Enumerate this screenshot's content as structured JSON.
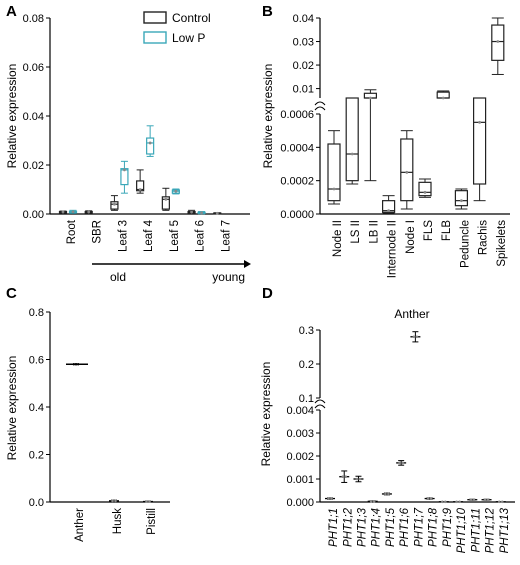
{
  "figure": {
    "panels": [
      "A",
      "B",
      "C",
      "D"
    ]
  },
  "colors": {
    "control": "#222222",
    "low_p": "#3aa7b8",
    "axis": "#000000",
    "point": "#888888"
  },
  "chart_data": [
    {
      "panel": "A",
      "type": "box",
      "ylabel": "Relative expression",
      "ylim": [
        0,
        0.08
      ],
      "yticks": [
        "0.00",
        "0.02",
        "0.04",
        "0.06",
        "0.08"
      ],
      "categories": [
        "Root",
        "SBR",
        "Leaf 3",
        "Leaf 4",
        "Leaf 5",
        "Leaf 6",
        "Leaf 7"
      ],
      "gradient_axis": {
        "start": "old",
        "end": "young"
      },
      "legend": {
        "position": "top-right",
        "entries": [
          "Control",
          "Low P"
        ]
      },
      "series": [
        {
          "name": "Control",
          "values": [
            {
              "min": 0.0003,
              "q1": 0.0005,
              "median": 0.0008,
              "q3": 0.001,
              "max": 0.0012
            },
            {
              "min": 0.0003,
              "q1": 0.0005,
              "median": 0.0008,
              "q3": 0.001,
              "max": 0.0013
            },
            {
              "min": 0.0015,
              "q1": 0.002,
              "median": 0.004,
              "q3": 0.005,
              "max": 0.0075
            },
            {
              "min": 0.0085,
              "q1": 0.0095,
              "median": 0.01,
              "q3": 0.0135,
              "max": 0.018
            },
            {
              "min": 0.0015,
              "q1": 0.002,
              "median": 0.006,
              "q3": 0.007,
              "max": 0.0105
            },
            {
              "min": 0.0002,
              "q1": 0.0005,
              "median": 0.0008,
              "q3": 0.001,
              "max": 0.0015
            },
            {
              "min": 0.0001,
              "q1": 0.0002,
              "median": 0.0003,
              "q3": 0.0004,
              "max": 0.0005
            }
          ]
        },
        {
          "name": "Low P",
          "values": [
            {
              "min": 0.0003,
              "q1": 0.0006,
              "median": 0.0009,
              "q3": 0.0011,
              "max": 0.0015
            },
            null,
            {
              "min": 0.0085,
              "q1": 0.012,
              "median": 0.018,
              "q3": 0.0185,
              "max": 0.0215
            },
            {
              "min": 0.0235,
              "q1": 0.0245,
              "median": 0.029,
              "q3": 0.031,
              "max": 0.036
            },
            {
              "min": 0.0082,
              "q1": 0.0085,
              "median": 0.0093,
              "q3": 0.0098,
              "max": 0.0102
            },
            {
              "min": 0.0001,
              "q1": 0.0003,
              "median": 0.0005,
              "q3": 0.0007,
              "max": 0.001
            },
            null
          ]
        }
      ]
    },
    {
      "panel": "B",
      "type": "box",
      "ylabel": "Relative expression",
      "axis_break": {
        "lower_range": [
          0,
          0.0006
        ],
        "upper_range": [
          0.0006,
          0.04
        ]
      },
      "yticks_lower": [
        "0.0000",
        "0.0002",
        "0.0004",
        "0.0006"
      ],
      "yticks_upper": [
        "0.01",
        "0.02",
        "0.03",
        "0.04"
      ],
      "upper_tick_values": [
        0.01,
        0.02,
        0.03,
        0.04
      ],
      "categories": [
        "Node II",
        "LS II",
        "LB II",
        "Internode II",
        "Node I",
        "FLS",
        "FLB",
        "Peduncle",
        "Rachis",
        "Spikelets"
      ],
      "boxes": [
        {
          "min": 6e-05,
          "q1": 8e-05,
          "median": 0.00015,
          "q3": 0.00042,
          "max": 0.0005
        },
        {
          "min": 0.00018,
          "q1": 0.0002,
          "median": 0.00036,
          "q3": 0.00062,
          "max": 0.00062
        },
        {
          "min": 0.0002,
          "q1": 0.0007,
          "median": 0.006,
          "q3": 0.008,
          "max": 0.0095
        },
        {
          "min": 5e-06,
          "q1": 1e-05,
          "median": 2e-05,
          "q3": 8e-05,
          "max": 0.00011
        },
        {
          "min": 3e-05,
          "q1": 8e-05,
          "median": 0.00025,
          "q3": 0.00045,
          "max": 0.0005
        },
        {
          "min": 0.0001,
          "q1": 0.00011,
          "median": 0.00013,
          "q3": 0.00019,
          "max": 0.00021
        },
        {
          "min": 0.0017,
          "q1": 0.003,
          "median": 0.006,
          "q3": 0.0085,
          "max": 0.009
        },
        {
          "min": 3e-05,
          "q1": 5e-05,
          "median": 8e-05,
          "q3": 0.00014,
          "max": 0.00015
        },
        {
          "min": 8e-05,
          "q1": 0.00018,
          "median": 0.00055,
          "q3": 0.00062,
          "max": 0.00062
        },
        {
          "min": 0.016,
          "q1": 0.022,
          "median": 0.03,
          "q3": 0.037,
          "max": 0.04
        }
      ]
    },
    {
      "panel": "C",
      "type": "scatter-errorbar",
      "ylabel": "Relative expression",
      "ylim": [
        0,
        0.8
      ],
      "yticks": [
        "0.0",
        "0.2",
        "0.4",
        "0.6",
        "0.8"
      ],
      "categories": [
        "Anther",
        "Husk",
        "Pistill"
      ],
      "values": [
        0.58,
        0.005,
        0.002
      ],
      "errors": [
        0.003,
        0.003,
        0.002
      ]
    },
    {
      "panel": "D",
      "type": "scatter-errorbar",
      "title": "Anther",
      "ylabel": "Relative expression",
      "axis_break": {
        "lower_range": [
          0,
          0.004
        ],
        "upper_range": [
          0.004,
          0.3
        ]
      },
      "yticks_lower": [
        "0.000",
        "0.001",
        "0.002",
        "0.003",
        "0.004"
      ],
      "yticks_upper": [
        "0.1",
        "0.2",
        "0.3"
      ],
      "upper_tick_values": [
        0.1,
        0.2,
        0.3
      ],
      "categories": [
        "PHT1;1",
        "PHT1;2",
        "PHT1;3",
        "PHT1;4",
        "PHT1;5",
        "PHT1;6",
        "PHT1;7",
        "PHT1;8",
        "PHT1;9",
        "PHT1;10",
        "PHT1;11",
        "PHT1;12",
        "PHT1;13"
      ],
      "values": [
        0.00015,
        0.0011,
        0.001,
        3e-05,
        0.00035,
        0.0017,
        0.28,
        0.00015,
        1e-05,
        1e-05,
        0.0001,
        0.0001,
        1e-05
      ],
      "errors": [
        3e-05,
        0.00025,
        0.00012,
        2e-05,
        4e-05,
        0.0001,
        0.015,
        3e-05,
        1e-05,
        1e-05,
        2e-05,
        2e-05,
        1e-05
      ]
    }
  ]
}
